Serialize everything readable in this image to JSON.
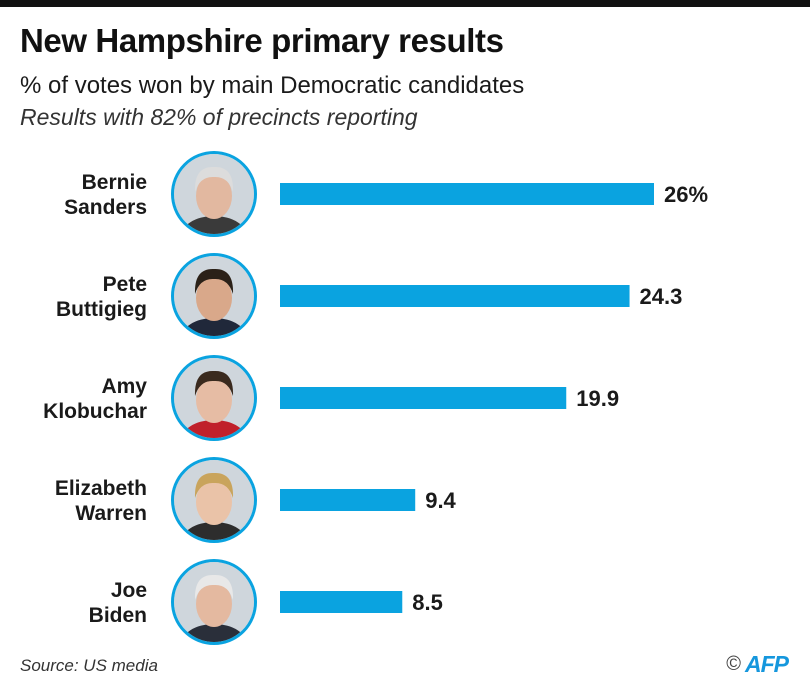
{
  "header": {
    "title": "New Hampshire primary results",
    "subtitle": "% of votes won by main Democratic candidates",
    "note": "Results with 82% of precincts reporting"
  },
  "footer": {
    "source": "Source: US media",
    "copyright_symbol": "©",
    "logo_text": "AFP"
  },
  "colors": {
    "bar": "#0aa3e0",
    "portrait_ring": "#0aa3e0"
  },
  "chart_data": {
    "type": "bar",
    "orientation": "horizontal",
    "title": "New Hampshire primary results",
    "subtitle": "% of votes won by main Democratic candidates",
    "categories": [
      [
        "Bernie",
        "Sanders"
      ],
      [
        "Pete",
        "Buttigieg"
      ],
      [
        "Amy",
        "Klobuchar"
      ],
      [
        "Elizabeth",
        "Warren"
      ],
      [
        "Joe",
        "Biden"
      ]
    ],
    "values": [
      26,
      24.3,
      19.9,
      9.4,
      8.5
    ],
    "value_labels": [
      "26%",
      "24.3",
      "19.9",
      "9.4",
      "8.5"
    ],
    "xlim": [
      0,
      26
    ],
    "grid": false,
    "legend": "none"
  }
}
